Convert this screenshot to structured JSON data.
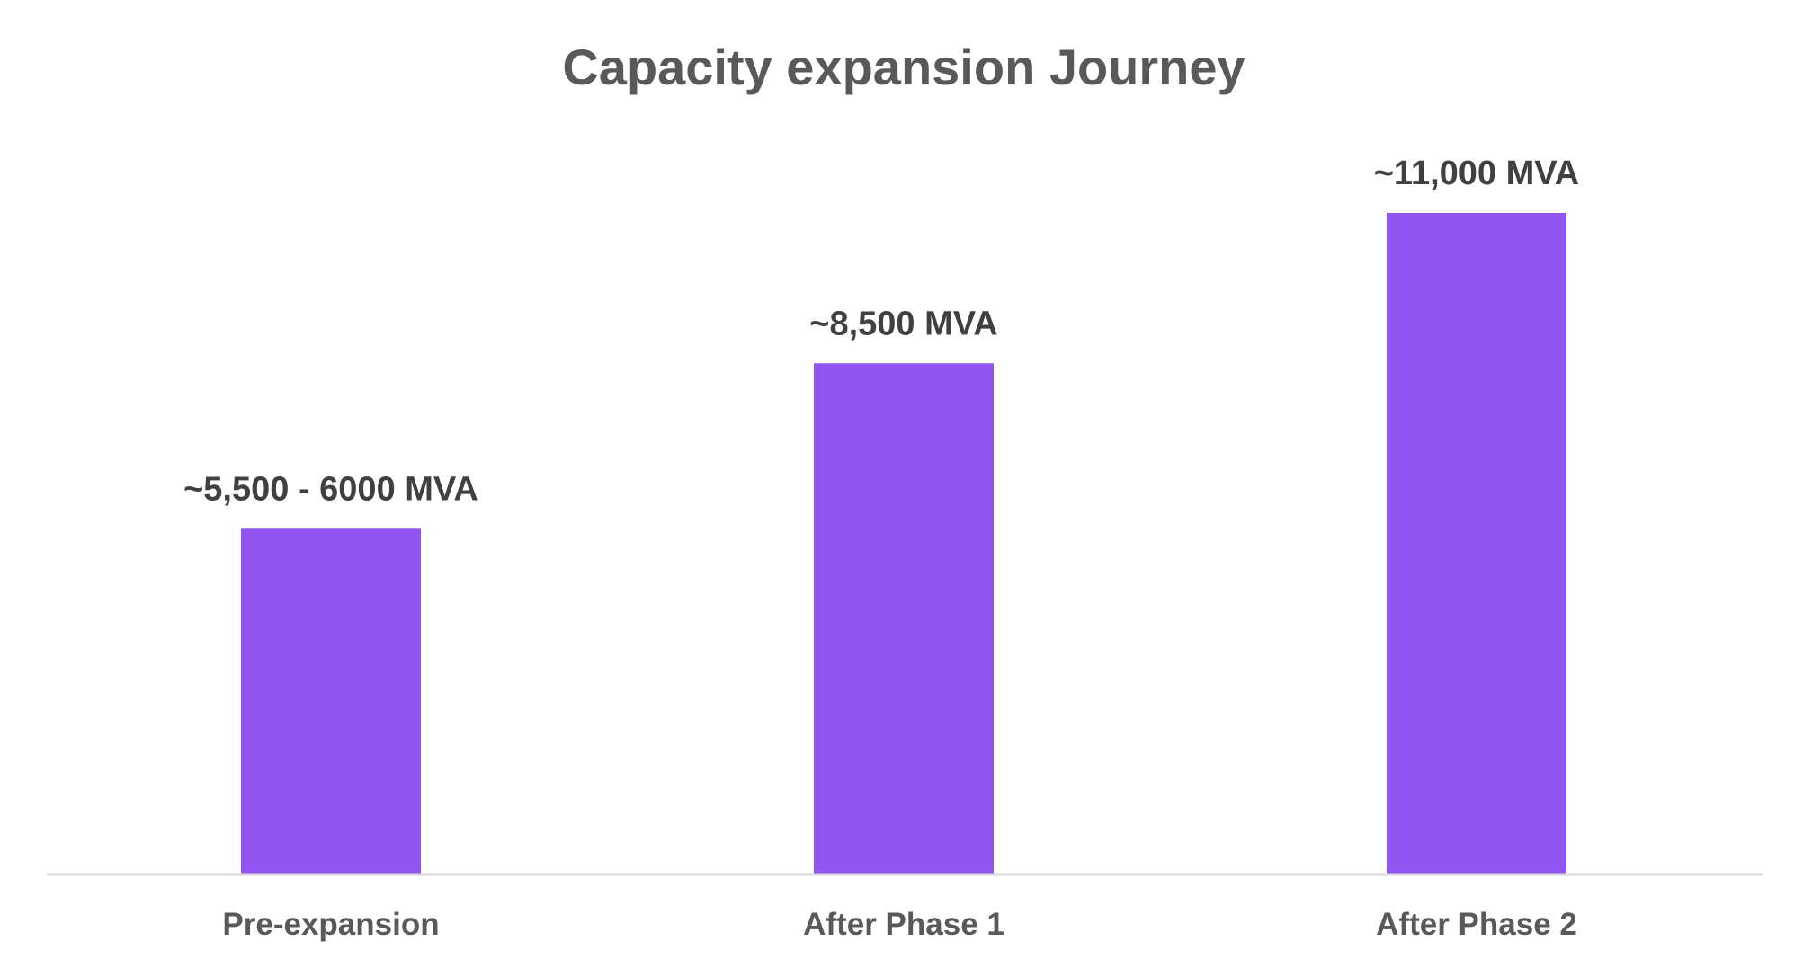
{
  "chart_data": {
    "type": "bar",
    "title": "Capacity expansion Journey",
    "xlabel": "",
    "ylabel": "",
    "categories": [
      "Pre-expansion",
      "After Phase 1",
      "After Phase 2"
    ],
    "values": [
      5750,
      8500,
      11000
    ],
    "data_labels": [
      "~5,500 - 6000 MVA",
      "~8,500 MVA",
      "~11,000 MVA"
    ],
    "units": "MVA",
    "ylim": [
      0,
      12000
    ],
    "grid": false,
    "legend": "none",
    "bar_color": "#9155F2",
    "axis_color": "#D9D9D9"
  }
}
